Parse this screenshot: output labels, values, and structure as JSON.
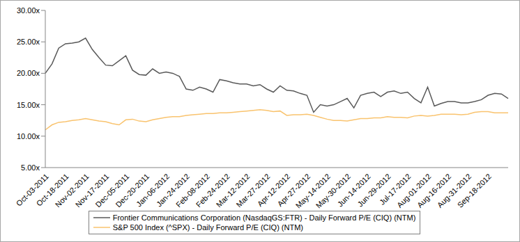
{
  "chart_data": {
    "type": "line",
    "categories": [
      "Oct-03-2011",
      null,
      null,
      "Oct-18-2011",
      null,
      null,
      "Nov-02-2011",
      null,
      null,
      "Nov-17-2011",
      null,
      null,
      "Dec-05-2011",
      null,
      null,
      "Dec-20-2011",
      null,
      null,
      "Jan-06-2012",
      null,
      null,
      "Jan-24-2012",
      null,
      null,
      "Feb-08-2012",
      null,
      null,
      "Feb-24-2012",
      null,
      null,
      "Mar-12-2012",
      null,
      null,
      "Mar-27-2012",
      null,
      null,
      "Apr-12-2012",
      null,
      null,
      "Apr-27-2012",
      null,
      null,
      "May-14-2012",
      null,
      null,
      "May-30-2012",
      null,
      null,
      "Jun-14-2012",
      null,
      null,
      "Jun-29-2012",
      null,
      null,
      "Jul-17-2012",
      null,
      null,
      "Aug-01-2012",
      null,
      null,
      "Aug-16-2012",
      null,
      null,
      "Aug-31-2012",
      null,
      null,
      "Sep-18-2012",
      null,
      null,
      null
    ],
    "series": [
      {
        "name": "Frontier Communications Corporation (NasdaqGS:FTR) - Daily Forward P/E (CIQ) (NTM)",
        "color": "#595959",
        "values": [
          20.0,
          21.5,
          24.0,
          24.7,
          24.8,
          25.0,
          25.6,
          23.8,
          22.5,
          21.3,
          21.2,
          22.0,
          22.8,
          20.5,
          19.8,
          19.7,
          20.7,
          20.0,
          20.2,
          20.0,
          19.5,
          17.5,
          17.3,
          17.8,
          17.5,
          17.0,
          19.0,
          18.8,
          18.5,
          18.3,
          18.3,
          18.0,
          18.2,
          17.5,
          17.0,
          18.0,
          17.3,
          17.2,
          16.8,
          16.5,
          13.8,
          15.0,
          14.8,
          15.0,
          15.5,
          16.0,
          14.5,
          16.5,
          16.8,
          17.0,
          16.3,
          17.0,
          17.2,
          16.8,
          17.0,
          16.0,
          15.3,
          17.8,
          14.8,
          15.2,
          15.5,
          15.5,
          15.3,
          15.3,
          15.5,
          15.8,
          16.5,
          16.8,
          16.7,
          16.0
        ]
      },
      {
        "name": "S&P 500 Index (^SPX) - Daily Forward P/E (CIQ) (NTM)",
        "color": "#F9C36E",
        "values": [
          11.0,
          11.8,
          12.2,
          12.3,
          12.5,
          12.6,
          12.8,
          12.6,
          12.4,
          12.3,
          12.0,
          11.8,
          12.6,
          12.7,
          12.4,
          12.3,
          12.6,
          12.8,
          13.0,
          13.1,
          13.1,
          13.3,
          13.4,
          13.5,
          13.6,
          13.6,
          13.7,
          13.7,
          13.8,
          13.9,
          14.0,
          14.1,
          14.2,
          14.1,
          13.9,
          14.0,
          13.3,
          13.4,
          13.4,
          13.5,
          13.3,
          13.0,
          12.7,
          12.5,
          12.5,
          12.4,
          12.6,
          12.8,
          12.8,
          12.9,
          12.9,
          13.1,
          13.0,
          13.0,
          12.9,
          13.2,
          13.3,
          13.2,
          13.3,
          13.5,
          13.5,
          13.5,
          13.4,
          13.5,
          13.8,
          13.9,
          13.9,
          13.7,
          13.7,
          13.7
        ]
      }
    ],
    "ylim": [
      5,
      30
    ],
    "yticks": [
      {
        "value": 5,
        "label": "5.00x"
      },
      {
        "value": 10,
        "label": "10.00x"
      },
      {
        "value": 15,
        "label": "15.00x"
      },
      {
        "value": 20,
        "label": "20.00x"
      },
      {
        "value": 25,
        "label": "25.00x"
      },
      {
        "value": 30,
        "label": "30.00x"
      }
    ],
    "grid": false,
    "legend": "bottom"
  }
}
